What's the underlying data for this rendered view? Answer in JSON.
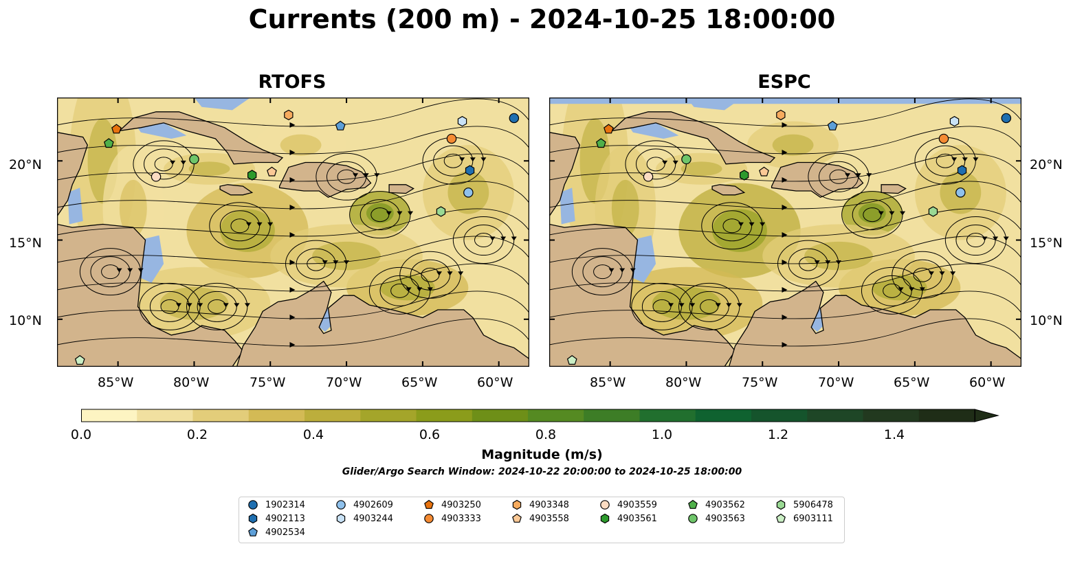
{
  "title": "Currents (200 m) - 2024-10-25 18:00:00",
  "panels": [
    {
      "title": "RTOFS"
    },
    {
      "title": "ESPC"
    }
  ],
  "lat_labels": [
    "20°N",
    "15°N",
    "10°N"
  ],
  "lon_labels": [
    "85°W",
    "80°W",
    "75°W",
    "70°W",
    "65°W",
    "60°W"
  ],
  "colorbar": {
    "label": "Magnitude (m/s)",
    "ticks": [
      "0.0",
      "0.2",
      "0.4",
      "0.6",
      "0.8",
      "1.0",
      "1.2",
      "1.4"
    ],
    "range": [
      0,
      1.5
    ],
    "extend": "max",
    "colors": [
      "#fdf4c2",
      "#f1e0a0",
      "#e3cd7a",
      "#d3ba55",
      "#bcae3c",
      "#a4a52a",
      "#8b9c1b",
      "#6e8f18",
      "#558a22",
      "#3d7d26",
      "#216f2e",
      "#0f6230",
      "#15542c",
      "#1e4626",
      "#22391f",
      "#1f2d17"
    ]
  },
  "search_window": "Glider/Argo Search Window: 2024-10-22 20:00:00 to 2024-10-25 18:00:00",
  "colors": {
    "land": "#d2b48c",
    "ocean": "#97b6e1"
  },
  "legend": [
    {
      "id": "1902314",
      "marker": "circle",
      "color": "#1f6fb0"
    },
    {
      "id": "4902113",
      "marker": "hexagon",
      "color": "#1f6fb0"
    },
    {
      "id": "4902534",
      "marker": "pentagon",
      "color": "#5d9fd8"
    },
    {
      "id": "4902609",
      "marker": "circle",
      "color": "#8fc1ec"
    },
    {
      "id": "4903244",
      "marker": "hexagon",
      "color": "#c9e2f6"
    },
    {
      "id": "4903250",
      "marker": "pentagon",
      "color": "#e8730f"
    },
    {
      "id": "4903333",
      "marker": "circle",
      "color": "#f58b33"
    },
    {
      "id": "4903348",
      "marker": "hexagon",
      "color": "#f7ab5e"
    },
    {
      "id": "4903558",
      "marker": "pentagon",
      "color": "#fbc996"
    },
    {
      "id": "4903559",
      "marker": "circle",
      "color": "#fcdcc2"
    },
    {
      "id": "4903561",
      "marker": "hexagon",
      "color": "#2d9a2d"
    },
    {
      "id": "4903562",
      "marker": "pentagon",
      "color": "#4fb04a"
    },
    {
      "id": "4903563",
      "marker": "circle",
      "color": "#6fc56a"
    },
    {
      "id": "5906478",
      "marker": "hexagon",
      "color": "#9ad994"
    },
    {
      "id": "6903111",
      "marker": "pentagon",
      "color": "#cbefc5"
    }
  ],
  "floats": [
    {
      "id": "1902314",
      "lon": -59.0,
      "lat": 22.7
    },
    {
      "id": "4902113",
      "lon": -61.9,
      "lat": 19.4
    },
    {
      "id": "4902534",
      "lon": -70.4,
      "lat": 22.2
    },
    {
      "id": "4902609",
      "lon": -62.0,
      "lat": 18.0
    },
    {
      "id": "4903244",
      "lon": -62.4,
      "lat": 22.5
    },
    {
      "id": "4903250",
      "lon": -85.1,
      "lat": 22.0
    },
    {
      "id": "4903333",
      "lon": -63.1,
      "lat": 21.4
    },
    {
      "id": "4903348",
      "lon": -73.8,
      "lat": 22.9
    },
    {
      "id": "4903558",
      "lon": -74.9,
      "lat": 19.3
    },
    {
      "id": "4903559",
      "lon": -82.5,
      "lat": 19.0
    },
    {
      "id": "4903561",
      "lon": -76.2,
      "lat": 19.1
    },
    {
      "id": "4903562",
      "lon": -85.6,
      "lat": 21.1
    },
    {
      "id": "4903563",
      "lon": -80.0,
      "lat": 20.1
    },
    {
      "id": "5906478",
      "lon": -63.8,
      "lat": 16.8
    },
    {
      "id": "6903111",
      "lon": -87.5,
      "lat": 7.4
    }
  ],
  "map_extent": {
    "lon": [
      -89,
      -58
    ],
    "lat": [
      7,
      24
    ]
  }
}
